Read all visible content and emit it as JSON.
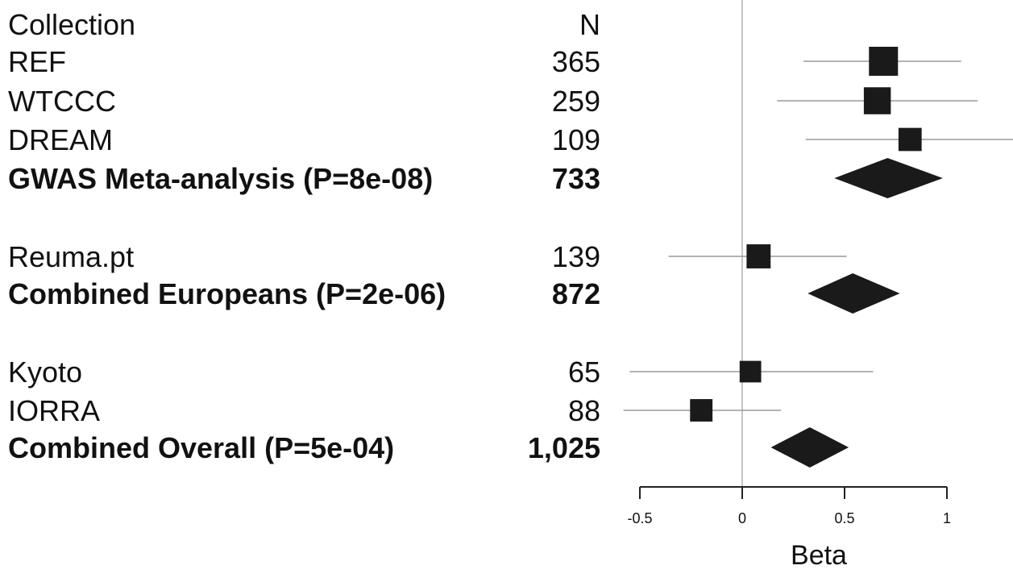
{
  "chart_data": {
    "type": "forest",
    "header": {
      "collection": "Collection",
      "n": "N"
    },
    "rows": [
      {
        "label": "REF",
        "n": "365",
        "kind": "study",
        "beta": 0.69,
        "lo": 0.3,
        "hi": 1.07,
        "weight": 365
      },
      {
        "label": "WTCCC",
        "n": "259",
        "kind": "study",
        "beta": 0.66,
        "lo": 0.17,
        "hi": 1.15,
        "weight": 259
      },
      {
        "label": "DREAM",
        "n": "109",
        "kind": "study",
        "beta": 0.82,
        "lo": 0.31,
        "hi": 1.33,
        "weight": 109
      },
      {
        "label": "GWAS Meta-analysis (P=8e-08)",
        "n": "733",
        "kind": "summary",
        "beta": 0.71,
        "lo": 0.45,
        "hi": 0.98
      },
      {
        "label": "Reuma.pt",
        "n": "139",
        "kind": "study",
        "beta": 0.08,
        "lo": -0.36,
        "hi": 0.51,
        "weight": 139
      },
      {
        "label": "Combined Europeans (P=2e-06)",
        "n": "872",
        "kind": "summary",
        "beta": 0.54,
        "lo": 0.32,
        "hi": 0.77
      },
      {
        "label": "Kyoto",
        "n": "65",
        "kind": "study",
        "beta": 0.04,
        "lo": -0.55,
        "hi": 0.64,
        "weight": 65
      },
      {
        "label": "IORRA",
        "n": "88",
        "kind": "study",
        "beta": -0.2,
        "lo": -0.58,
        "hi": 0.19,
        "weight": 88
      },
      {
        "label": "Combined Overall (P=5e-04)",
        "n": "1,025",
        "kind": "summary",
        "beta": 0.33,
        "lo": 0.14,
        "hi": 0.52
      }
    ],
    "xlabel": "Beta",
    "xticks": [
      -0.5,
      0,
      0.5,
      1
    ],
    "xtick_labels": [
      "-0.5",
      "0",
      "0.5",
      "1"
    ],
    "xlim": [
      -0.5,
      1
    ],
    "reference_line": 0,
    "colors": {
      "marker": "#1a1a1a",
      "ci_line": "#9a9a9a",
      "ref_line": "#b0b0b0",
      "axis": "#222222"
    }
  }
}
